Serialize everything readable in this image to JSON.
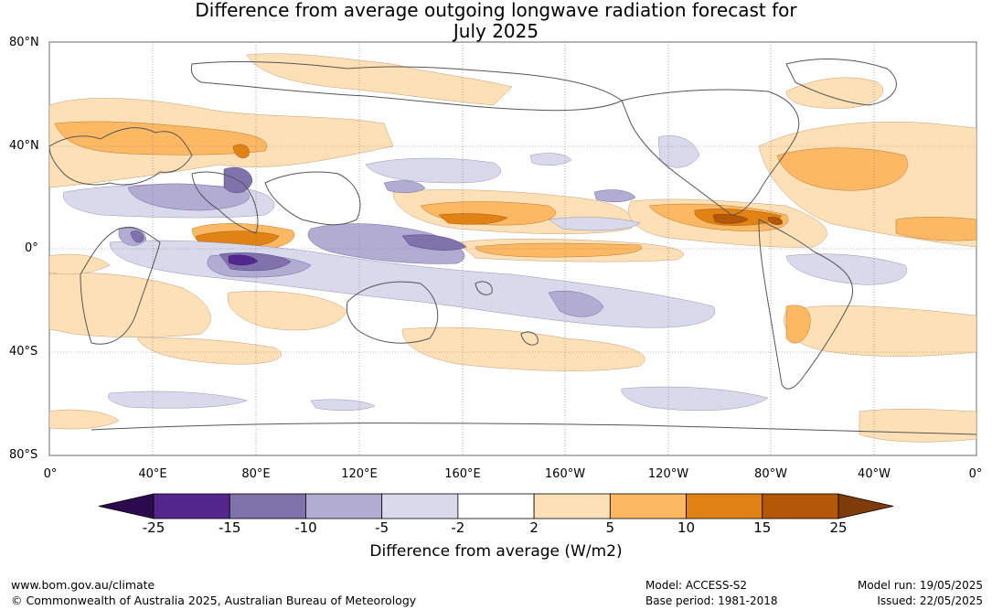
{
  "title_line1": "Difference from average outgoing longwave radiation forecast for",
  "title_line2": "July 2025",
  "lat_labels": [
    "80°N",
    "40°N",
    "0°",
    "40°S",
    "80°S"
  ],
  "lon_labels": [
    "0°",
    "40°E",
    "80°E",
    "120°E",
    "160°E",
    "160°W",
    "120°W",
    "80°W",
    "40°W",
    "0°"
  ],
  "colorbar": {
    "title": "Difference from average (W/m2)",
    "ticks": [
      "-25",
      "-15",
      "-10",
      "-5",
      "-2",
      "2",
      "5",
      "10",
      "15",
      "25"
    ],
    "colors": [
      "#2d0a4e",
      "#54278f",
      "#8073ac",
      "#b2abd2",
      "#d8daeb",
      "#ffffff",
      "#fee0b6",
      "#fdb863",
      "#e08214",
      "#b35806",
      "#7f3b08"
    ]
  },
  "footer": {
    "url": "www.bom.gov.au/climate",
    "copyright": "© Commonwealth of Australia 2025, Australian Bureau of Meteorology",
    "model": "Model: ACCESS-S2",
    "base_period": "Base period: 1981-2018",
    "model_run": "Model run: 19/05/2025",
    "issued": "Issued: 22/05/2025"
  }
}
